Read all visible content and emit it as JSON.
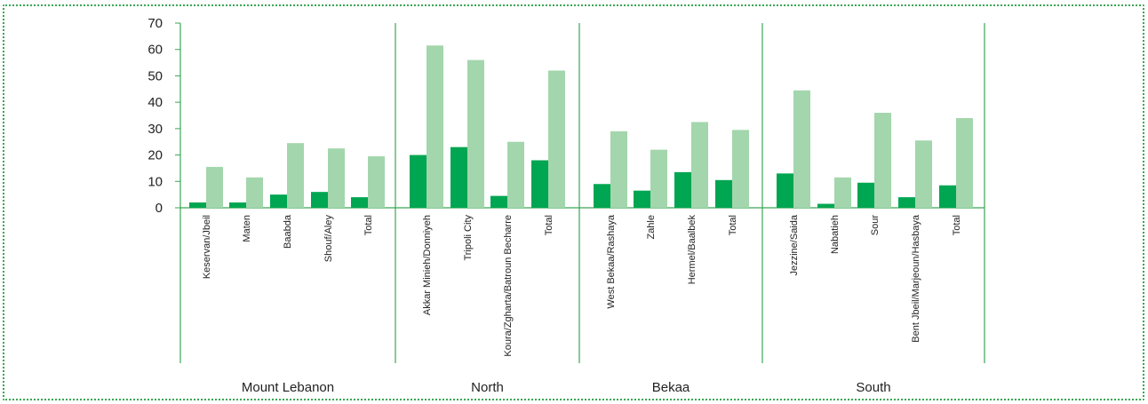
{
  "chart_data": {
    "type": "bar",
    "ylim": [
      0,
      70
    ],
    "yticks": [
      0,
      10,
      20,
      30,
      40,
      50,
      60,
      70
    ],
    "grid": false,
    "colors": {
      "dark": "#00a651",
      "light": "#a3d6ac",
      "axis": "#3aa655"
    },
    "groups": [
      {
        "name": "Mount Lebanon",
        "categories": [
          "Keservan/Jbeil",
          "Maten",
          "Baabda",
          "Shouf/Aley",
          "Total"
        ],
        "dark": [
          2,
          2,
          5,
          6,
          4
        ],
        "light": [
          15.5,
          11.5,
          24.5,
          22.5,
          19.5
        ]
      },
      {
        "name": "North",
        "categories": [
          "Akkar Minieh/Donniyeh",
          "Tripoli City",
          "Koura/Zgharta/Batroun Becharre",
          "Total"
        ],
        "dark": [
          20,
          23,
          4.5,
          18
        ],
        "light": [
          61.5,
          56,
          25,
          52
        ]
      },
      {
        "name": "Bekaa",
        "categories": [
          "West Bekaa/Rashaya",
          "Zahle",
          "Hermel/Baalbek",
          "Total"
        ],
        "dark": [
          9,
          6.5,
          13.5,
          10.5
        ],
        "light": [
          29,
          22,
          32.5,
          29.5
        ]
      },
      {
        "name": "South",
        "categories": [
          "Jezzine/Saida",
          "Nabatieh",
          "Sour",
          "Bent Jbeil/Marjeoun/Hasbaya",
          "Total"
        ],
        "dark": [
          13,
          1.5,
          9.5,
          4,
          8.5
        ],
        "light": [
          44.5,
          11.5,
          36,
          25.5,
          34
        ]
      }
    ]
  }
}
